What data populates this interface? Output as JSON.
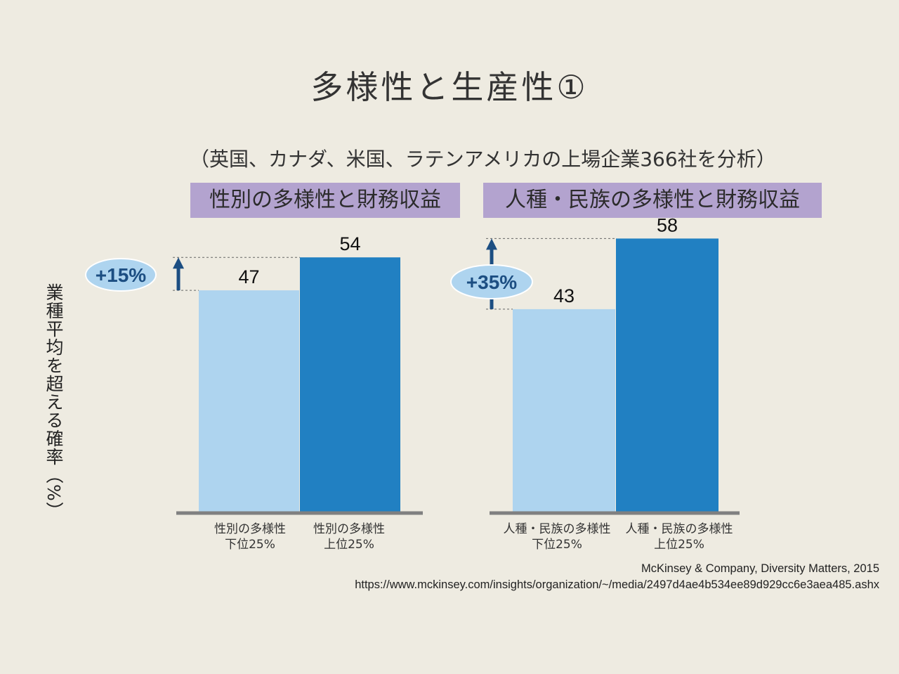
{
  "title": "多様性と生産性①",
  "subtitle": "（英国、カナダ、米国、ラテンアメリカの上場企業366社を分析）",
  "ylabel": "業種平均を超える確率（%）",
  "colors": {
    "bottom_quartile": "#AED4EF",
    "top_quartile": "#2180C2",
    "badge_fill": "#AED4EF",
    "badge_text": "#1C4E82",
    "arrow": "#1C4E82",
    "axis": "#808080",
    "panel_label_bg": "#B3A3CF"
  },
  "chart_data": [
    {
      "type": "bar",
      "title": "性別の多様性と財務収益",
      "categories": [
        "性別の多様性\n下位25%",
        "性別の多様性\n上位25%"
      ],
      "category_lines": [
        [
          "性別の多様性",
          "下位25%"
        ],
        [
          "性別の多様性",
          "上位25%"
        ]
      ],
      "values": [
        47,
        54
      ],
      "difference_label": "+15%",
      "ylabel": "業種平均を超える確率（%）",
      "grid": false,
      "legend": "none"
    },
    {
      "type": "bar",
      "title": "人種・民族の多様性と財務収益",
      "categories": [
        "人種・民族の多様性\n下位25%",
        "人種・民族の多様性\n上位25%"
      ],
      "category_lines": [
        [
          "人種・民族の多様性",
          "下位25%"
        ],
        [
          "人種・民族の多様性",
          "上位25%"
        ]
      ],
      "values": [
        43,
        58
      ],
      "difference_label": "+35%",
      "ylabel": "業種平均を超える確率（%）",
      "grid": false,
      "legend": "none"
    }
  ],
  "source": {
    "line1": "McKinsey & Company, Diversity Matters, 2015",
    "line2": "https://www.mckinsey.com/insights/organization/~/media/2497d4ae4b534ee89d929cc6e3aea485.ashx"
  }
}
